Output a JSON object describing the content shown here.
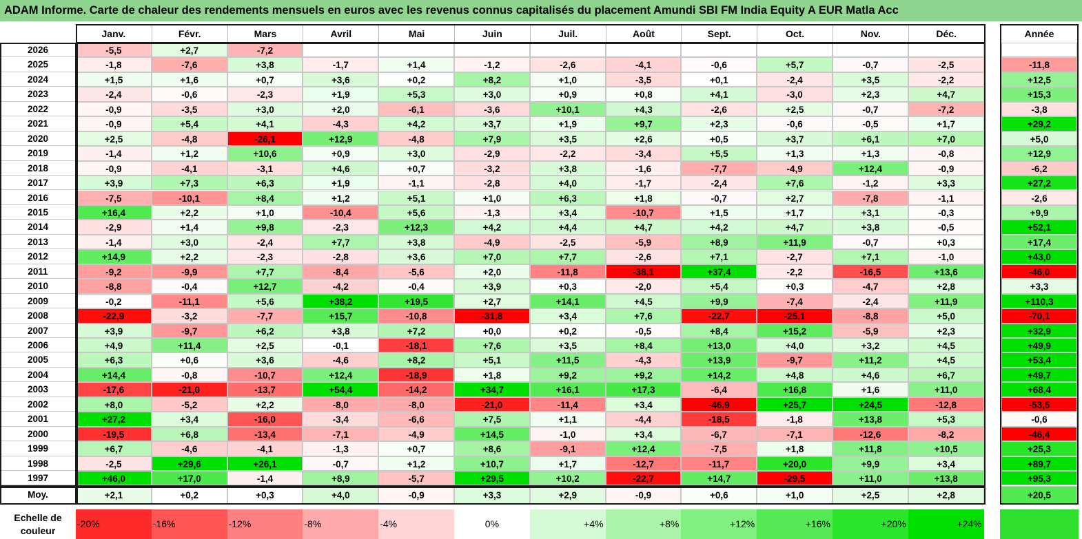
{
  "title": "ADAM Informe. Carte de chaleur des rendements mensuels en euros avec les revenus connus capitalisés du placement Amundi SBI FM India Equity A EUR Matla Acc",
  "chart_data": {
    "type": "heatmap",
    "months": [
      "Janv.",
      "Févr.",
      "Mars",
      "Avril",
      "Mai",
      "Juin",
      "Juil.",
      "Août",
      "Sept.",
      "Oct.",
      "Nov.",
      "Déc."
    ],
    "year_header": "Année",
    "years": [
      "2026",
      "2025",
      "2024",
      "2023",
      "2022",
      "2021",
      "2020",
      "2019",
      "2018",
      "2017",
      "2016",
      "2015",
      "2014",
      "2013",
      "2012",
      "2011",
      "2010",
      "2009",
      "2008",
      "2007",
      "2006",
      "2005",
      "2004",
      "2003",
      "2002",
      "2001",
      "2000",
      "1999",
      "1998",
      "1997"
    ],
    "monthly": [
      [
        "-5,5",
        "+2,7",
        "-7,2",
        "",
        "",
        "",
        "",
        "",
        "",
        "",
        "",
        ""
      ],
      [
        "-1,8",
        "-7,6",
        "+3,8",
        "-1,7",
        "+1,4",
        "-1,2",
        "-2,6",
        "-4,1",
        "-0,6",
        "+5,7",
        "-0,7",
        "-2,5"
      ],
      [
        "+1,5",
        "+1,6",
        "+0,7",
        "+3,6",
        "+0,2",
        "+8,2",
        "+1,0",
        "-3,5",
        "+0,1",
        "-2,4",
        "+3,5",
        "-2,2"
      ],
      [
        "-2,4",
        "-0,6",
        "-2,3",
        "+1,9",
        "+5,3",
        "+3,0",
        "+0,9",
        "+0,8",
        "+4,1",
        "-3,0",
        "+2,3",
        "+4,7"
      ],
      [
        "-0,9",
        "-3,5",
        "+3,0",
        "+2,0",
        "-6,1",
        "-3,6",
        "+10,1",
        "+4,3",
        "-2,6",
        "+2,5",
        "-0,7",
        "-7,2"
      ],
      [
        "-0,9",
        "+5,4",
        "+4,1",
        "-4,3",
        "+4,2",
        "+3,7",
        "+1,9",
        "+9,7",
        "+2,3",
        "-0,6",
        "-0,5",
        "+1,7"
      ],
      [
        "+2,5",
        "-4,8",
        "-26,1",
        "+12,9",
        "-4,8",
        "+7,9",
        "+3,5",
        "+2,6",
        "+0,5",
        "+3,7",
        "+6,1",
        "+7,0"
      ],
      [
        "-1,4",
        "+1,2",
        "+10,6",
        "+0,9",
        "+3,0",
        "-2,9",
        "-2,2",
        "-3,4",
        "+5,5",
        "+1,3",
        "+1,3",
        "-0,8"
      ],
      [
        "-0,9",
        "-4,1",
        "-3,1",
        "+4,6",
        "+0,7",
        "-3,2",
        "+3,8",
        "-1,6",
        "-7,7",
        "-4,9",
        "+12,4",
        "-0,9"
      ],
      [
        "+3,9",
        "+7,3",
        "+6,3",
        "+1,9",
        "-1,1",
        "-2,8",
        "+4,0",
        "-1,7",
        "-2,4",
        "+7,6",
        "-1,2",
        "+3,3"
      ],
      [
        "-7,5",
        "-10,1",
        "+8,4",
        "+1,2",
        "+5,1",
        "+1,0",
        "+6,3",
        "+1,8",
        "-0,7",
        "+2,7",
        "-7,8",
        "-1,1"
      ],
      [
        "+16,4",
        "+2,2",
        "+1,0",
        "-10,4",
        "+5,6",
        "-1,3",
        "+3,4",
        "-10,7",
        "+1,5",
        "+1,7",
        "+3,1",
        "-0,3"
      ],
      [
        "-2,9",
        "+1,4",
        "+9,8",
        "-2,3",
        "+12,3",
        "+4,2",
        "+4,4",
        "+4,7",
        "+4,2",
        "+4,7",
        "+3,8",
        "-0,5"
      ],
      [
        "-1,4",
        "+3,0",
        "-2,4",
        "+7,7",
        "+3,8",
        "-4,9",
        "-2,5",
        "-5,9",
        "+8,9",
        "+11,9",
        "-0,7",
        "+0,3"
      ],
      [
        "+14,9",
        "+2,2",
        "-2,3",
        "-2,8",
        "+3,6",
        "+7,0",
        "+7,7",
        "-2,6",
        "+7,1",
        "-2,7",
        "+7,1",
        "-1,0"
      ],
      [
        "-9,2",
        "-9,9",
        "+7,7",
        "-8,4",
        "-5,6",
        "+2,0",
        "-11,8",
        "-38,1",
        "+37,4",
        "-2,2",
        "-16,5",
        "+13,6"
      ],
      [
        "-8,8",
        "-0,4",
        "+12,7",
        "-4,2",
        "-0,4",
        "+3,9",
        "+0,3",
        "-2,0",
        "+5,4",
        "+0,3",
        "-4,7",
        "+2,8"
      ],
      [
        "-0,2",
        "-11,1",
        "+5,6",
        "+38,2",
        "+19,5",
        "+2,7",
        "+14,1",
        "+4,5",
        "+9,9",
        "-7,4",
        "-2,4",
        "+11,9"
      ],
      [
        "-22,9",
        "-3,2",
        "-7,7",
        "+15,7",
        "-10,8",
        "-31,8",
        "+3,4",
        "+7,6",
        "-22,7",
        "-25,1",
        "-8,8",
        "+5,0"
      ],
      [
        "+3,9",
        "-9,7",
        "+6,2",
        "+3,8",
        "+7,2",
        "+0,0",
        "+0,2",
        "-0,5",
        "+8,4",
        "+15,2",
        "-5,9",
        "+2,3"
      ],
      [
        "+4,9",
        "+11,4",
        "+2,5",
        "-0,1",
        "-18,1",
        "+7,6",
        "+3,5",
        "+8,4",
        "+13,0",
        "+4,0",
        "+3,2",
        "+4,5"
      ],
      [
        "+6,3",
        "+0,6",
        "+3,6",
        "-4,6",
        "+8,2",
        "+5,1",
        "+11,5",
        "-4,3",
        "+13,9",
        "-9,7",
        "+11,2",
        "+4,5"
      ],
      [
        "+14,4",
        "-0,8",
        "-10,7",
        "+12,4",
        "-18,9",
        "+1,8",
        "+9,2",
        "+9,2",
        "+14,2",
        "+4,8",
        "+4,6",
        "+6,7"
      ],
      [
        "-17,6",
        "-21,0",
        "-13,7",
        "+54,4",
        "-14,2",
        "+34,7",
        "+16,1",
        "+17,3",
        "-6,4",
        "+16,8",
        "+1,6",
        "+11,0"
      ],
      [
        "+8,0",
        "-5,2",
        "+2,2",
        "-8,0",
        "-8,0",
        "-21,0",
        "-11,4",
        "+3,4",
        "-46,9",
        "+25,7",
        "+24,5",
        "-12,8"
      ],
      [
        "+27,2",
        "+3,4",
        "-16,0",
        "-3,4",
        "-6,6",
        "+7,5",
        "+1,1",
        "-4,4",
        "-18,5",
        "-1,8",
        "+13,8",
        "+5,3"
      ],
      [
        "-19,5",
        "+6,8",
        "-13,4",
        "-7,1",
        "-4,9",
        "+14,5",
        "-1,0",
        "+3,4",
        "-6,7",
        "-7,1",
        "-12,6",
        "-8,2"
      ],
      [
        "+6,7",
        "-4,6",
        "-4,1",
        "-1,3",
        "+0,7",
        "+8,6",
        "-9,1",
        "+12,4",
        "-7,5",
        "+1,8",
        "+11,8",
        "+10,5"
      ],
      [
        "-2,5",
        "+29,6",
        "+26,1",
        "-0,7",
        "+1,2",
        "+10,7",
        "+1,7",
        "-12,7",
        "-11,7",
        "+20,0",
        "+9,9",
        "+3,4"
      ],
      [
        "+46,0",
        "+17,0",
        "-1,4",
        "+8,9",
        "-5,7",
        "+29,5",
        "+10,2",
        "-22,7",
        "+14,7",
        "-29,5",
        "+11,0",
        "+13,8"
      ]
    ],
    "annual": [
      "",
      "-11,8",
      "+12,5",
      "+15,3",
      "-3,8",
      "+29,2",
      "+5,0",
      "+12,9",
      "-6,2",
      "+27,2",
      "-2,6",
      "+9,9",
      "+52,1",
      "+17,4",
      "+43,0",
      "-46,0",
      "+3,3",
      "+110,3",
      "-70,1",
      "+32,9",
      "+49,9",
      "+53,4",
      "+49,7",
      "+68,4",
      "-53,5",
      "-0,6",
      "-46,4",
      "+25,3",
      "+89,7",
      "+95,3"
    ],
    "average_label": "Moy.",
    "average": [
      "+2,1",
      "+0,2",
      "+0,3",
      "+4,0",
      "-0,9",
      "+3,3",
      "+2,9",
      "-0,9",
      "+0,6",
      "+1,0",
      "+2,5",
      "+2,8"
    ],
    "average_annual": "+20,5",
    "scale_label": "Echelle de couleur",
    "scale_steps": [
      "-20%",
      "-16%",
      "-12%",
      "-8%",
      "-4%",
      "0%",
      "+4%",
      "+8%",
      "+12%",
      "+16%",
      "+20%",
      "+24%"
    ],
    "colors": {
      "negative_max": "#ff0000",
      "neutral": "#ffffff",
      "positive_max": "#00e000",
      "title_bg": "#8fd48f"
    }
  }
}
